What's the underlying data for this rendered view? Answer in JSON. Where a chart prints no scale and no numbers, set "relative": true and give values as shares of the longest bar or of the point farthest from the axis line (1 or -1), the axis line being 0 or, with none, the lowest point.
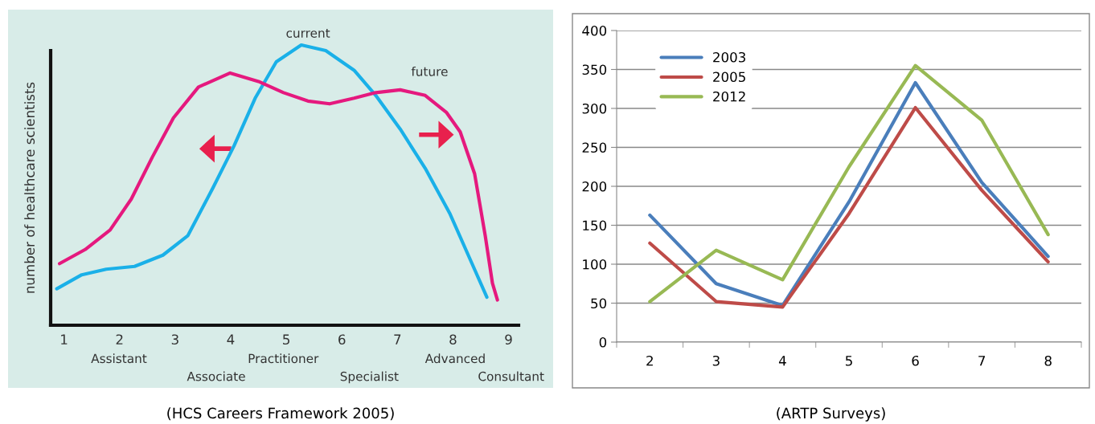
{
  "chart_data": [
    {
      "type": "line",
      "relative": true,
      "ylabel": "number of healthcare scientists",
      "xlim": [
        0.76,
        9.18
      ],
      "xticks": [
        1,
        2,
        3,
        4,
        5,
        6,
        7,
        8,
        9
      ],
      "grid": false,
      "legend": false,
      "series": [
        {
          "color": "#1ab0e8",
          "x": [
            0.87,
            1.32,
            1.76,
            2.27,
            2.78,
            3.23,
            3.68,
            4.06,
            4.44,
            4.82,
            5.27,
            5.71,
            6.22,
            6.61,
            7.05,
            7.5,
            7.94,
            8.32,
            8.61
          ],
          "values": [
            0.13,
            0.18,
            0.2,
            0.21,
            0.25,
            0.32,
            0.49,
            0.64,
            0.81,
            0.94,
            1.0,
            0.98,
            0.91,
            0.82,
            0.7,
            0.56,
            0.4,
            0.23,
            0.1
          ]
        },
        {
          "color": "#e5197e",
          "x": [
            0.92,
            1.38,
            1.83,
            2.21,
            2.59,
            2.97,
            3.42,
            3.99,
            4.5,
            4.95,
            5.39,
            5.78,
            6.22,
            6.61,
            7.05,
            7.5,
            7.88,
            8.13,
            8.39,
            8.58,
            8.71,
            8.8
          ],
          "values": [
            0.22,
            0.27,
            0.34,
            0.45,
            0.6,
            0.74,
            0.85,
            0.9,
            0.87,
            0.83,
            0.8,
            0.79,
            0.81,
            0.83,
            0.84,
            0.82,
            0.76,
            0.69,
            0.54,
            0.32,
            0.15,
            0.09
          ]
        }
      ],
      "annotations": [
        "current",
        "future",
        "Assistant",
        "Associate",
        "Practitioner",
        "Specialist",
        "Advanced",
        "Consultant",
        "(HCS Careers Framework 2005)"
      ]
    },
    {
      "type": "line",
      "categories": [
        "2",
        "3",
        "4",
        "5",
        "6",
        "7",
        "8"
      ],
      "ylim": [
        0,
        400
      ],
      "yticks": [
        0,
        50,
        100,
        150,
        200,
        250,
        300,
        350,
        400
      ],
      "grid": "y",
      "legend": "top left",
      "series": [
        {
          "name": "2003",
          "color": "#4a7ebb",
          "values": [
            163,
            75,
            47,
            180,
            333,
            205,
            110
          ]
        },
        {
          "name": "2005",
          "color": "#be4b48",
          "values": [
            127,
            52,
            45,
            165,
            301,
            195,
            103
          ]
        },
        {
          "name": "2012",
          "color": "#98b954",
          "values": [
            52,
            118,
            80,
            225,
            355,
            285,
            138
          ]
        }
      ],
      "annotations": [
        "(ARTP Surveys)"
      ]
    }
  ]
}
